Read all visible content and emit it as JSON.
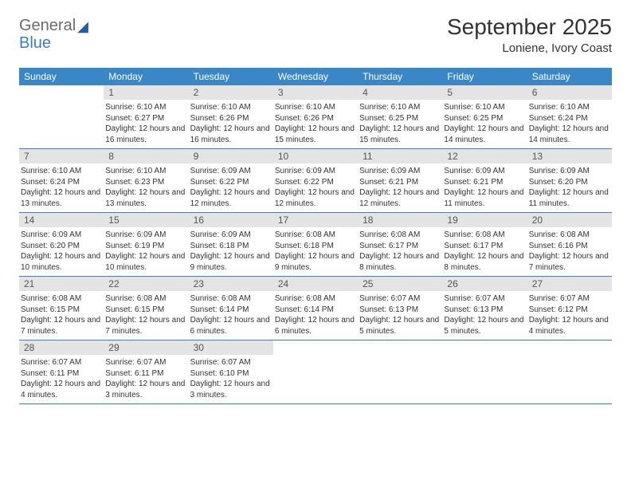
{
  "logo": {
    "general": "General",
    "blue": "Blue"
  },
  "header": {
    "month_title": "September 2025",
    "location": "Loniene, Ivory Coast"
  },
  "colors": {
    "header_bg": "#3a87c7",
    "divider": "#3a7fc4",
    "daynum_bg": "#e4e4e4"
  },
  "dow": [
    "Sunday",
    "Monday",
    "Tuesday",
    "Wednesday",
    "Thursday",
    "Friday",
    "Saturday"
  ],
  "weeks": [
    [
      {
        "n": "",
        "sr": "",
        "ss": "",
        "dl": ""
      },
      {
        "n": "1",
        "sr": "Sunrise: 6:10 AM",
        "ss": "Sunset: 6:27 PM",
        "dl": "Daylight: 12 hours and 16 minutes."
      },
      {
        "n": "2",
        "sr": "Sunrise: 6:10 AM",
        "ss": "Sunset: 6:26 PM",
        "dl": "Daylight: 12 hours and 16 minutes."
      },
      {
        "n": "3",
        "sr": "Sunrise: 6:10 AM",
        "ss": "Sunset: 6:26 PM",
        "dl": "Daylight: 12 hours and 15 minutes."
      },
      {
        "n": "4",
        "sr": "Sunrise: 6:10 AM",
        "ss": "Sunset: 6:25 PM",
        "dl": "Daylight: 12 hours and 15 minutes."
      },
      {
        "n": "5",
        "sr": "Sunrise: 6:10 AM",
        "ss": "Sunset: 6:25 PM",
        "dl": "Daylight: 12 hours and 14 minutes."
      },
      {
        "n": "6",
        "sr": "Sunrise: 6:10 AM",
        "ss": "Sunset: 6:24 PM",
        "dl": "Daylight: 12 hours and 14 minutes."
      }
    ],
    [
      {
        "n": "7",
        "sr": "Sunrise: 6:10 AM",
        "ss": "Sunset: 6:24 PM",
        "dl": "Daylight: 12 hours and 13 minutes."
      },
      {
        "n": "8",
        "sr": "Sunrise: 6:10 AM",
        "ss": "Sunset: 6:23 PM",
        "dl": "Daylight: 12 hours and 13 minutes."
      },
      {
        "n": "9",
        "sr": "Sunrise: 6:09 AM",
        "ss": "Sunset: 6:22 PM",
        "dl": "Daylight: 12 hours and 12 minutes."
      },
      {
        "n": "10",
        "sr": "Sunrise: 6:09 AM",
        "ss": "Sunset: 6:22 PM",
        "dl": "Daylight: 12 hours and 12 minutes."
      },
      {
        "n": "11",
        "sr": "Sunrise: 6:09 AM",
        "ss": "Sunset: 6:21 PM",
        "dl": "Daylight: 12 hours and 12 minutes."
      },
      {
        "n": "12",
        "sr": "Sunrise: 6:09 AM",
        "ss": "Sunset: 6:21 PM",
        "dl": "Daylight: 12 hours and 11 minutes."
      },
      {
        "n": "13",
        "sr": "Sunrise: 6:09 AM",
        "ss": "Sunset: 6:20 PM",
        "dl": "Daylight: 12 hours and 11 minutes."
      }
    ],
    [
      {
        "n": "14",
        "sr": "Sunrise: 6:09 AM",
        "ss": "Sunset: 6:20 PM",
        "dl": "Daylight: 12 hours and 10 minutes."
      },
      {
        "n": "15",
        "sr": "Sunrise: 6:09 AM",
        "ss": "Sunset: 6:19 PM",
        "dl": "Daylight: 12 hours and 10 minutes."
      },
      {
        "n": "16",
        "sr": "Sunrise: 6:09 AM",
        "ss": "Sunset: 6:18 PM",
        "dl": "Daylight: 12 hours and 9 minutes."
      },
      {
        "n": "17",
        "sr": "Sunrise: 6:08 AM",
        "ss": "Sunset: 6:18 PM",
        "dl": "Daylight: 12 hours and 9 minutes."
      },
      {
        "n": "18",
        "sr": "Sunrise: 6:08 AM",
        "ss": "Sunset: 6:17 PM",
        "dl": "Daylight: 12 hours and 8 minutes."
      },
      {
        "n": "19",
        "sr": "Sunrise: 6:08 AM",
        "ss": "Sunset: 6:17 PM",
        "dl": "Daylight: 12 hours and 8 minutes."
      },
      {
        "n": "20",
        "sr": "Sunrise: 6:08 AM",
        "ss": "Sunset: 6:16 PM",
        "dl": "Daylight: 12 hours and 7 minutes."
      }
    ],
    [
      {
        "n": "21",
        "sr": "Sunrise: 6:08 AM",
        "ss": "Sunset: 6:15 PM",
        "dl": "Daylight: 12 hours and 7 minutes."
      },
      {
        "n": "22",
        "sr": "Sunrise: 6:08 AM",
        "ss": "Sunset: 6:15 PM",
        "dl": "Daylight: 12 hours and 7 minutes."
      },
      {
        "n": "23",
        "sr": "Sunrise: 6:08 AM",
        "ss": "Sunset: 6:14 PM",
        "dl": "Daylight: 12 hours and 6 minutes."
      },
      {
        "n": "24",
        "sr": "Sunrise: 6:08 AM",
        "ss": "Sunset: 6:14 PM",
        "dl": "Daylight: 12 hours and 6 minutes."
      },
      {
        "n": "25",
        "sr": "Sunrise: 6:07 AM",
        "ss": "Sunset: 6:13 PM",
        "dl": "Daylight: 12 hours and 5 minutes."
      },
      {
        "n": "26",
        "sr": "Sunrise: 6:07 AM",
        "ss": "Sunset: 6:13 PM",
        "dl": "Daylight: 12 hours and 5 minutes."
      },
      {
        "n": "27",
        "sr": "Sunrise: 6:07 AM",
        "ss": "Sunset: 6:12 PM",
        "dl": "Daylight: 12 hours and 4 minutes."
      }
    ],
    [
      {
        "n": "28",
        "sr": "Sunrise: 6:07 AM",
        "ss": "Sunset: 6:11 PM",
        "dl": "Daylight: 12 hours and 4 minutes."
      },
      {
        "n": "29",
        "sr": "Sunrise: 6:07 AM",
        "ss": "Sunset: 6:11 PM",
        "dl": "Daylight: 12 hours and 3 minutes."
      },
      {
        "n": "30",
        "sr": "Sunrise: 6:07 AM",
        "ss": "Sunset: 6:10 PM",
        "dl": "Daylight: 12 hours and 3 minutes."
      },
      {
        "n": "",
        "sr": "",
        "ss": "",
        "dl": ""
      },
      {
        "n": "",
        "sr": "",
        "ss": "",
        "dl": ""
      },
      {
        "n": "",
        "sr": "",
        "ss": "",
        "dl": ""
      },
      {
        "n": "",
        "sr": "",
        "ss": "",
        "dl": ""
      }
    ]
  ]
}
